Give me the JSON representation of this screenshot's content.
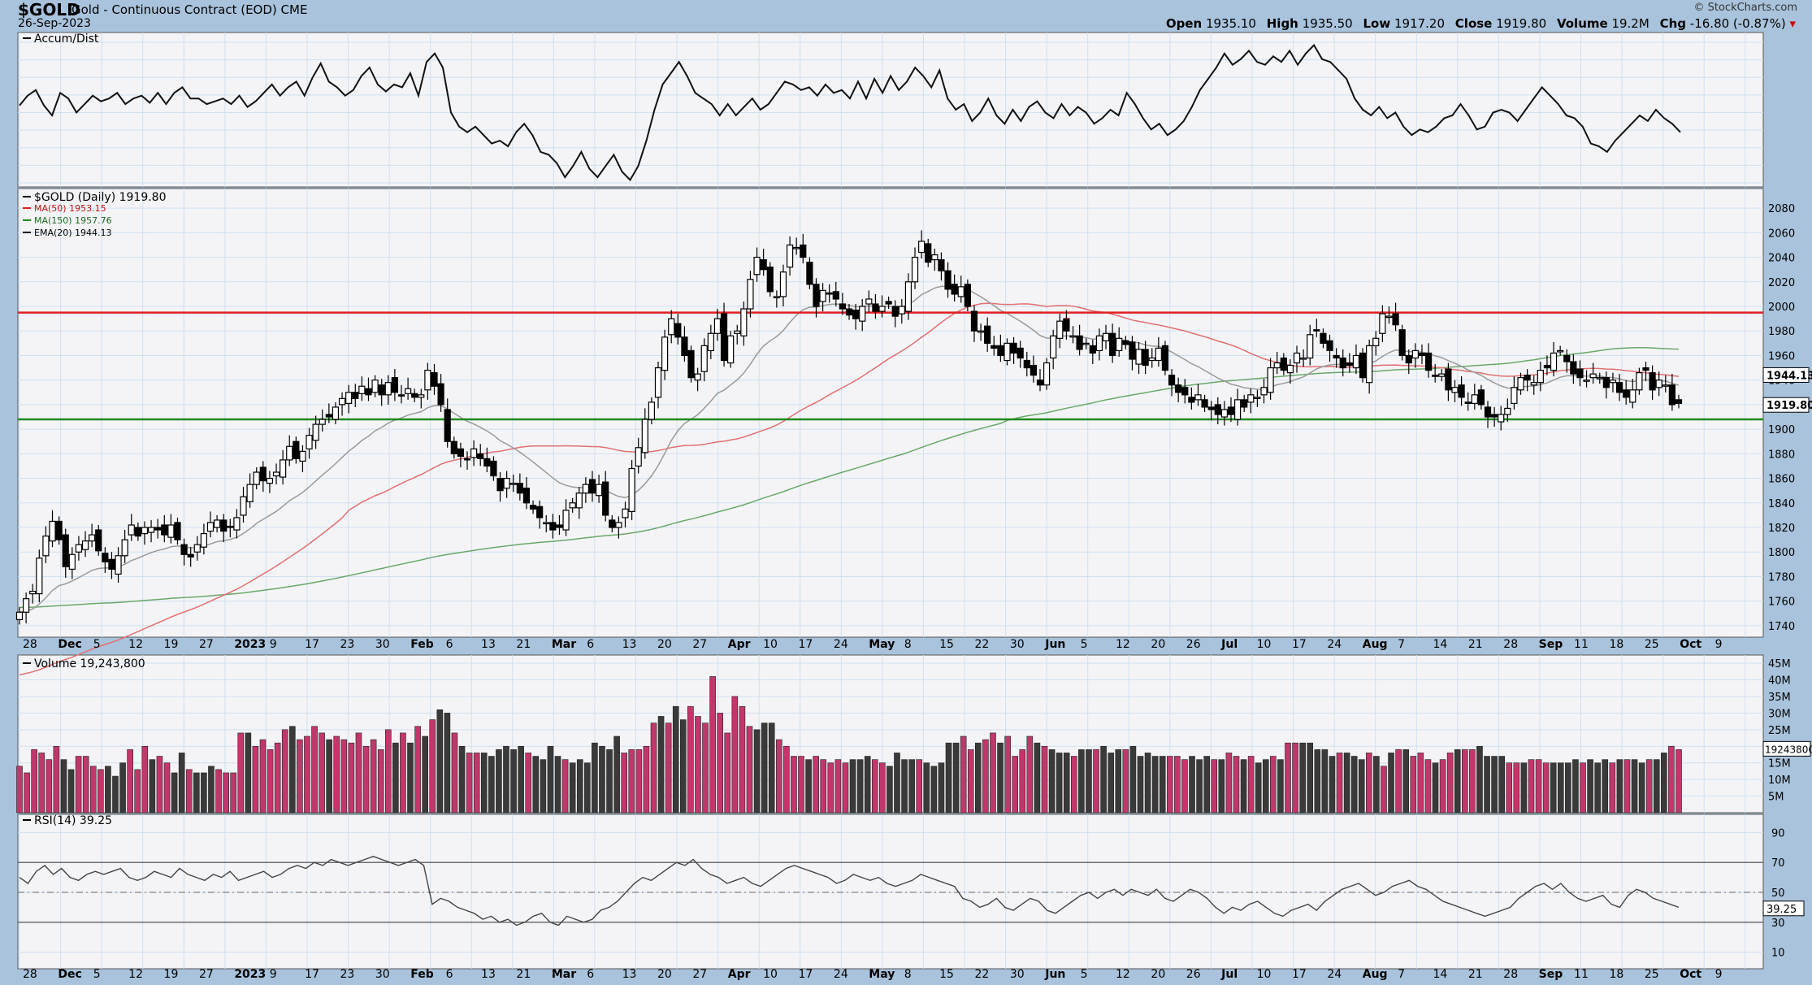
{
  "header": {
    "symbol": "$GOLD",
    "name": "Gold - Continuous Contract (EOD)",
    "exchange": "CME",
    "date": "26-Sep-2023",
    "source": "© StockCharts.com",
    "open_label": "Open",
    "open": "1935.10",
    "high_label": "High",
    "high": "1935.50",
    "low_label": "Low",
    "low": "1917.20",
    "close_label": "Close",
    "close": "1919.80",
    "volume_label": "Volume",
    "volume": "19.2M",
    "chg_label": "Chg",
    "chg": "-16.80 (-0.87%)",
    "chg_arrow": "▾"
  },
  "panels": {
    "accum_label": "Accum/Dist",
    "price_label": "$GOLD (Daily) 1919.80",
    "ma50_label": "MA(50) 1953.15",
    "ma150_label": "MA(150) 1957.76",
    "ema20_label": "EMA(20) 1944.13",
    "volume_label": "Volume 19,243,800",
    "rsi_label": "RSI(14) 39.25"
  },
  "colors": {
    "panel_bg": "#f3f3f6",
    "grid": "#cfe0f0",
    "up": "#c2376b",
    "down": "#3a3a3a",
    "ma50": "#e07070",
    "ma150": "#6aa86a",
    "ema20": "#9a9a9a",
    "resistance": "#e02020",
    "support": "#1f8a1f"
  },
  "chart_data": [
    {
      "type": "line",
      "title": "Accum/Dist",
      "series": [
        {
          "name": "Accum/Dist",
          "values": [
            0.55,
            0.62,
            0.66,
            0.55,
            0.48,
            0.64,
            0.6,
            0.5,
            0.56,
            0.62,
            0.58,
            0.6,
            0.64,
            0.56,
            0.6,
            0.62,
            0.57,
            0.64,
            0.56,
            0.64,
            0.68,
            0.6,
            0.6,
            0.56,
            0.58,
            0.6,
            0.56,
            0.62,
            0.54,
            0.58,
            0.64,
            0.7,
            0.62,
            0.68,
            0.72,
            0.62,
            0.75,
            0.85,
            0.72,
            0.68,
            0.62,
            0.66,
            0.76,
            0.82,
            0.7,
            0.65,
            0.7,
            0.68,
            0.78,
            0.62,
            0.86,
            0.92,
            0.82,
            0.5,
            0.4,
            0.36,
            0.4,
            0.34,
            0.28,
            0.3,
            0.26,
            0.36,
            0.42,
            0.34,
            0.22,
            0.2,
            0.14,
            0.04,
            0.12,
            0.22,
            0.1,
            0.04,
            0.12,
            0.2,
            0.08,
            0.02,
            0.12,
            0.3,
            0.52,
            0.7,
            0.78,
            0.86,
            0.76,
            0.64,
            0.6,
            0.56,
            0.48,
            0.56,
            0.48,
            0.54,
            0.6,
            0.52,
            0.56,
            0.64,
            0.72,
            0.7,
            0.66,
            0.68,
            0.62,
            0.7,
            0.64,
            0.66,
            0.6,
            0.72,
            0.6,
            0.74,
            0.64,
            0.76,
            0.66,
            0.72,
            0.82,
            0.76,
            0.68,
            0.8,
            0.6,
            0.52,
            0.56,
            0.44,
            0.5,
            0.6,
            0.48,
            0.42,
            0.52,
            0.44,
            0.54,
            0.58,
            0.5,
            0.46,
            0.56,
            0.48,
            0.54,
            0.5,
            0.42,
            0.46,
            0.52,
            0.48,
            0.64,
            0.56,
            0.46,
            0.38,
            0.42,
            0.34,
            0.38,
            0.44,
            0.54,
            0.66,
            0.74,
            0.82,
            0.92,
            0.84,
            0.88,
            0.94,
            0.86,
            0.84,
            0.9,
            0.86,
            0.94,
            0.84,
            0.92,
            0.98,
            0.88,
            0.86,
            0.8,
            0.74,
            0.6,
            0.52,
            0.48,
            0.54,
            0.46,
            0.5,
            0.4,
            0.34,
            0.38,
            0.36,
            0.4,
            0.46,
            0.48,
            0.56,
            0.48,
            0.38,
            0.4,
            0.5,
            0.52,
            0.5,
            0.44,
            0.52,
            0.6,
            0.68,
            0.62,
            0.56,
            0.48,
            0.46,
            0.4,
            0.28,
            0.26,
            0.22,
            0.3,
            0.36,
            0.42,
            0.48,
            0.44,
            0.52,
            0.46,
            0.42,
            0.36
          ]
        }
      ]
    },
    {
      "type": "candlestick",
      "title": "$GOLD (Daily) 1919.80",
      "ylim": [
        1732,
        2092
      ],
      "yticks": [
        1740,
        1760,
        1780,
        1800,
        1820,
        1840,
        1860,
        1880,
        1900,
        1920,
        1940,
        1960,
        1980,
        2000,
        2020,
        2040,
        2060,
        2080
      ],
      "xlabels": [
        "28",
        "Dec",
        "5",
        "12",
        "19",
        "27",
        "2023",
        "9",
        "17",
        "23",
        "30",
        "Feb",
        "6",
        "13",
        "21",
        "Mar",
        "6",
        "13",
        "20",
        "27",
        "Apr",
        "10",
        "17",
        "24",
        "May",
        "8",
        "15",
        "22",
        "30",
        "Jun",
        "5",
        "12",
        "20",
        "26",
        "Jul",
        "10",
        "17",
        "24",
        "Aug",
        "7",
        "14",
        "21",
        "28",
        "Sep",
        "11",
        "18",
        "25",
        "Oct",
        "9"
      ],
      "close": [
        1751,
        1762,
        1768,
        1795,
        1813,
        1825,
        1810,
        1788,
        1798,
        1806,
        1809,
        1814,
        1801,
        1792,
        1786,
        1797,
        1810,
        1822,
        1813,
        1820,
        1820,
        1818,
        1814,
        1822,
        1810,
        1798,
        1796,
        1806,
        1815,
        1824,
        1826,
        1817,
        1820,
        1828,
        1845,
        1855,
        1865,
        1858,
        1860,
        1865,
        1875,
        1886,
        1876,
        1882,
        1895,
        1904,
        1908,
        1910,
        1918,
        1925,
        1930,
        1925,
        1935,
        1928,
        1940,
        1928,
        1938,
        1930,
        1927,
        1933,
        1926,
        1928,
        1948,
        1935,
        1920,
        1890,
        1880,
        1878,
        1875,
        1884,
        1876,
        1870,
        1862,
        1850,
        1860,
        1856,
        1848,
        1840,
        1835,
        1828,
        1824,
        1818,
        1820,
        1834,
        1840,
        1848,
        1855,
        1848,
        1855,
        1830,
        1820,
        1824,
        1835,
        1868,
        1885,
        1908,
        1922,
        1950,
        1975,
        1990,
        1975,
        1960,
        1942,
        1945,
        1968,
        1978,
        1990,
        1956,
        1976,
        1980,
        1998,
        2022,
        2040,
        2030,
        2012,
        2008,
        2028,
        2050,
        2048,
        2040,
        2018,
        2000,
        2013,
        2010,
        2006,
        1998,
        1993,
        1990,
        2000,
        2006,
        1996,
        2000,
        2002,
        1992,
        2000,
        2020,
        2040,
        2053,
        2036,
        2042,
        2029,
        2014,
        2010,
        2016,
        2000,
        1980,
        1980,
        1970,
        1966,
        1960,
        1970,
        1962,
        1958,
        1950,
        1944,
        1936,
        1954,
        1976,
        1988,
        1980,
        1976,
        1965,
        1970,
        1962,
        1976,
        1978,
        1960,
        1974,
        1969,
        1957,
        1965,
        1952,
        1958,
        1966,
        1948,
        1936,
        1930,
        1928,
        1922,
        1928,
        1918,
        1916,
        1912,
        1916,
        1912,
        1924,
        1918,
        1928,
        1926,
        1934,
        1950,
        1954,
        1948,
        1952,
        1962,
        1958,
        1977,
        1980,
        1970,
        1964,
        1958,
        1950,
        1952,
        1960,
        1942,
        1968,
        1974,
        1994,
        1992,
        1985,
        1960,
        1954,
        1964,
        1960,
        1948,
        1943,
        1945,
        1932,
        1934,
        1926,
        1921,
        1928,
        1920,
        1910,
        1910,
        1912,
        1917,
        1934,
        1942,
        1940,
        1938,
        1948,
        1950,
        1962,
        1964,
        1955,
        1945,
        1942,
        1940,
        1945,
        1942,
        1934,
        1940,
        1930,
        1926,
        1932,
        1946,
        1948,
        1932,
        1940,
        1936,
        1920,
        1921
      ]
    },
    {
      "type": "bar",
      "title": "Volume 19,243,800",
      "ylim": [
        0,
        46
      ],
      "yticks": [
        "5M",
        "10M",
        "15M",
        "20M",
        "25M",
        "30M",
        "35M",
        "40M",
        "45M"
      ],
      "values": [
        14,
        12,
        19,
        18,
        16,
        20,
        16,
        13,
        17,
        17,
        14,
        13,
        14,
        11,
        15,
        19,
        13,
        20,
        16,
        17,
        15,
        12,
        18,
        13,
        12,
        12,
        14,
        13,
        12,
        12,
        24,
        24,
        20,
        22,
        19,
        21,
        25,
        26,
        22,
        23,
        26,
        24,
        22,
        23,
        22,
        21,
        24,
        20,
        22,
        19,
        25,
        21,
        24,
        21,
        26,
        23,
        28,
        31,
        30,
        24,
        20,
        18,
        18,
        18,
        17,
        19,
        20,
        19,
        20,
        18,
        17,
        16,
        20,
        17,
        16,
        15,
        16,
        15,
        21,
        20,
        19,
        23,
        18,
        19,
        19,
        20,
        27,
        29,
        27,
        32,
        28,
        32,
        29,
        27,
        41,
        30,
        24,
        35,
        32,
        26,
        25,
        27,
        27,
        22,
        20,
        17,
        17,
        16,
        17,
        16,
        15,
        16,
        15,
        16,
        16,
        17,
        16,
        15,
        14,
        18,
        16,
        16,
        16,
        15,
        14,
        15,
        21,
        21,
        23,
        19,
        21,
        22,
        24,
        21,
        23,
        17,
        19,
        23,
        21,
        20,
        19,
        18,
        18,
        17,
        19,
        19,
        19,
        20,
        18,
        19,
        19,
        20,
        17,
        18,
        17,
        17,
        17,
        17,
        16,
        17,
        16,
        17,
        16,
        16,
        18,
        17,
        16,
        17,
        15,
        16,
        17,
        16,
        21,
        21,
        21,
        21,
        19,
        19,
        17,
        18,
        18,
        17,
        16,
        18,
        17,
        14,
        18,
        19,
        19,
        17,
        18,
        16,
        15,
        16,
        18,
        19,
        19,
        19,
        20,
        17,
        17,
        17,
        15,
        15,
        15,
        16,
        16,
        15,
        15,
        15,
        15,
        16,
        15,
        16,
        15,
        16,
        15,
        16,
        16,
        16,
        15,
        16,
        16,
        18,
        20,
        19
      ],
      "last_value_label": "19243800"
    },
    {
      "type": "line",
      "title": "RSI(14) 39.25",
      "ylim": [
        0,
        100
      ],
      "yticks": [
        10,
        30,
        50,
        70,
        90
      ],
      "last_value_label": "39.25",
      "series": [
        {
          "name": "RSI(14)",
          "values": [
            60,
            56,
            64,
            68,
            62,
            66,
            60,
            58,
            62,
            64,
            62,
            64,
            66,
            60,
            58,
            60,
            64,
            62,
            60,
            66,
            62,
            60,
            58,
            62,
            60,
            64,
            58,
            60,
            62,
            64,
            60,
            62,
            66,
            68,
            66,
            70,
            68,
            72,
            70,
            68,
            70,
            72,
            74,
            72,
            70,
            68,
            70,
            72,
            68,
            42,
            46,
            44,
            40,
            38,
            36,
            32,
            34,
            30,
            32,
            28,
            30,
            34,
            36,
            30,
            28,
            34,
            32,
            30,
            32,
            38,
            40,
            44,
            50,
            56,
            60,
            58,
            62,
            66,
            70,
            68,
            72,
            66,
            62,
            60,
            56,
            58,
            60,
            56,
            54,
            58,
            62,
            66,
            68,
            66,
            64,
            62,
            60,
            56,
            58,
            62,
            60,
            58,
            60,
            56,
            54,
            56,
            58,
            62,
            60,
            58,
            56,
            54,
            46,
            44,
            40,
            42,
            46,
            40,
            38,
            42,
            46,
            44,
            38,
            36,
            40,
            44,
            48,
            50,
            46,
            50,
            52,
            48,
            52,
            50,
            48,
            52,
            46,
            44,
            48,
            52,
            50,
            46,
            40,
            36,
            40,
            38,
            42,
            44,
            40,
            36,
            34,
            38,
            40,
            42,
            38,
            44,
            48,
            52,
            54,
            56,
            52,
            48,
            50,
            54,
            56,
            58,
            54,
            52,
            48,
            44,
            42,
            40,
            38,
            36,
            34,
            36,
            38,
            40,
            46,
            50,
            54,
            56,
            52,
            56,
            50,
            46,
            44,
            46,
            48,
            42,
            40,
            48,
            52,
            50,
            46,
            44,
            42,
            40
          ]
        }
      ]
    }
  ]
}
